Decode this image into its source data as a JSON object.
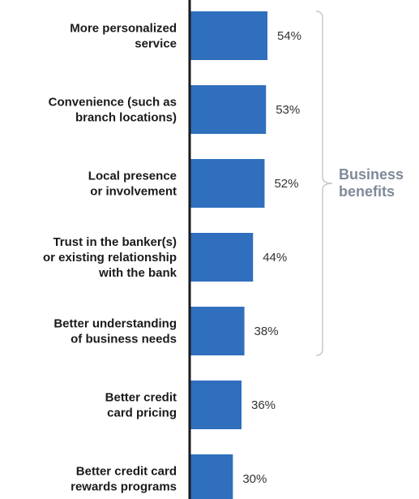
{
  "chart_data": {
    "type": "bar",
    "orientation": "horizontal",
    "categories": [
      [
        "More personalized",
        "service"
      ],
      [
        "Convenience (such as",
        "branch locations)"
      ],
      [
        "Local presence",
        "or involvement"
      ],
      [
        "Trust in the banker(s)",
        "or existing relationship",
        "with the bank"
      ],
      [
        "Better understanding",
        "of business needs"
      ],
      [
        "Better credit",
        "card pricing"
      ],
      [
        "Better credit card",
        "rewards programs"
      ]
    ],
    "values": [
      54,
      53,
      52,
      44,
      38,
      36,
      30
    ],
    "value_labels": [
      "54%",
      "53%",
      "52%",
      "44%",
      "38%",
      "36%",
      "30%"
    ],
    "xlim": [
      0,
      100
    ],
    "bar_color": "#2f6fbd",
    "axis_color": "#1a1a1a",
    "bracket_color": "#c8c8c8",
    "group_label_color": "#7f8a99",
    "group": {
      "label": [
        "Business",
        "benefits"
      ],
      "start_index": 0,
      "end_index": 4
    },
    "grid": false,
    "legend": "none"
  }
}
